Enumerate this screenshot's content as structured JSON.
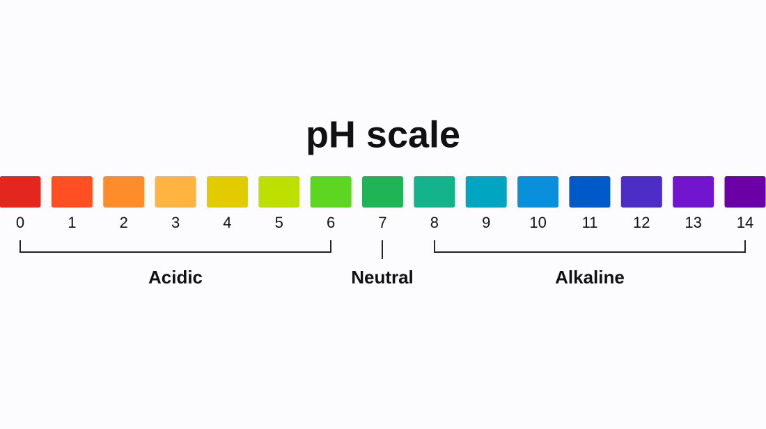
{
  "title": "pH scale",
  "scale": {
    "levels": [
      0,
      1,
      2,
      3,
      4,
      5,
      6,
      7,
      8,
      9,
      10,
      11,
      12,
      13,
      14
    ],
    "colors": [
      "#e3261f",
      "#ff4f23",
      "#ff8c2b",
      "#ffb340",
      "#e2cc00",
      "#bde000",
      "#5cd621",
      "#1fb556",
      "#13b38c",
      "#00a5c2",
      "#0a8fdb",
      "#0059c8",
      "#4c2dc6",
      "#7115cf",
      "#6a00a6"
    ]
  },
  "groups": [
    "Acidic",
    "Neutral",
    "Alkaline"
  ]
}
